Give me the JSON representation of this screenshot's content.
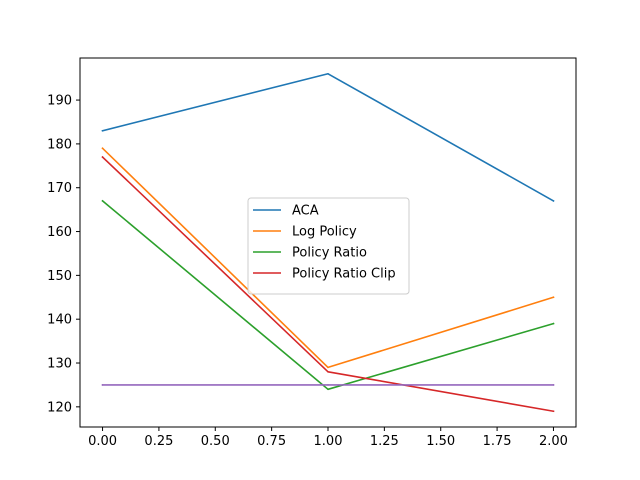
{
  "chart_data": {
    "type": "line",
    "title": "",
    "xlabel": "",
    "ylabel": "",
    "x": [
      0,
      1,
      2
    ],
    "xlim": [
      -0.1,
      2.1
    ],
    "ylim": [
      115.4,
      199.6
    ],
    "xticks": [
      "0.00",
      "0.25",
      "0.50",
      "0.75",
      "1.00",
      "1.25",
      "1.50",
      "1.75",
      "2.00"
    ],
    "xtick_values": [
      0,
      0.25,
      0.5,
      0.75,
      1.0,
      1.25,
      1.5,
      1.75,
      2.0
    ],
    "yticks": [
      "120",
      "130",
      "140",
      "150",
      "160",
      "170",
      "180",
      "190"
    ],
    "ytick_values": [
      120,
      130,
      140,
      150,
      160,
      170,
      180,
      190
    ],
    "grid": false,
    "legend_position": "center",
    "series": [
      {
        "name": "ACA",
        "color": "#1f77b4",
        "values": [
          183,
          196,
          167
        ]
      },
      {
        "name": "Log Policy",
        "color": "#ff7f0e",
        "values": [
          179,
          129,
          145
        ]
      },
      {
        "name": "Policy Ratio",
        "color": "#2ca02c",
        "values": [
          167,
          124,
          139
        ]
      },
      {
        "name": "Policy Ratio Clip",
        "color": "#d62728",
        "values": [
          177,
          128,
          119
        ]
      },
      {
        "color": "#9467bd",
        "values": [
          125,
          125,
          125
        ]
      }
    ]
  }
}
